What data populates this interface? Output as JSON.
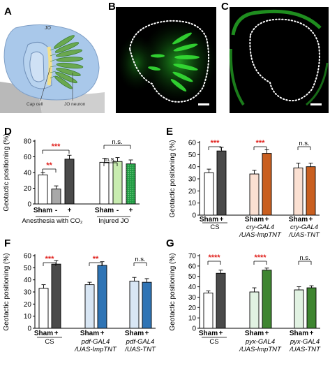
{
  "panel_labels": {
    "A": "A",
    "B": "B",
    "C": "C",
    "D": "D",
    "E": "E",
    "F": "F",
    "G": "G"
  },
  "panel_a": {
    "jo_label": "JO",
    "cap_cell_label": "Cap cell",
    "jo_neuron_label": "JO neuron"
  },
  "colors": {
    "white": "#ffffff",
    "light_gray": "#a8a8a8",
    "dark_gray": "#4a4a4a",
    "light_green": "#c8ecb0",
    "dotted_green": "#23a64a",
    "peach": "#fbe0d2",
    "orange": "#c95f20",
    "light_blue": "#d8e6f4",
    "blue": "#2f74b5",
    "mint": "#e1f2e2",
    "green": "#3e8530",
    "sig_red": "#e0201c",
    "axis": "#000000",
    "fluor_green": "#2bd12b"
  },
  "chart_data": [
    {
      "id": "D",
      "type": "bar",
      "ylabel": "Geotactic positioning (%)",
      "ylim": [
        0,
        80
      ],
      "yticks": [
        "0",
        "20",
        "40",
        "60",
        "80"
      ],
      "tick_labels": [
        "Sham",
        "-",
        "+",
        "Sham",
        "-",
        "+"
      ],
      "group_labels": [
        "Anesthesia with CO₂",
        "Injured JO"
      ],
      "values": [
        37,
        19,
        57,
        53,
        54,
        51
      ],
      "errors": [
        3,
        4,
        5,
        5,
        5,
        5
      ],
      "bar_colors": [
        "white",
        "light_gray",
        "dark_gray",
        "white",
        "light_green",
        "dotted_green"
      ],
      "annotations": [
        {
          "text": "***",
          "red": true
        },
        {
          "text": "**",
          "red": true
        },
        {
          "text": "n.s.",
          "red": false
        },
        {
          "text": "n.s.",
          "red": false
        }
      ]
    },
    {
      "id": "E",
      "type": "bar",
      "ylabel": "Geotactic positioning (%)",
      "ylim": [
        0,
        60
      ],
      "yticks": [
        "0",
        "10",
        "20",
        "30",
        "40",
        "50",
        "60"
      ],
      "tick_labels": [
        "Sham",
        "+",
        "Sham",
        "+",
        "Sham",
        "+"
      ],
      "group_labels": [
        [
          "CS"
        ],
        [
          "cry-GAL4",
          "/UAS-ImpTNT"
        ],
        [
          "cry-GAL4",
          "/UAS-TNT"
        ]
      ],
      "values": [
        35,
        53,
        34,
        51,
        39,
        40
      ],
      "errors": [
        3,
        3,
        3,
        3,
        4,
        3
      ],
      "bar_colors": [
        "white",
        "dark_gray",
        "peach",
        "orange",
        "peach",
        "orange"
      ],
      "annotations": [
        {
          "text": "***",
          "red": true
        },
        {
          "text": "***",
          "red": true
        },
        {
          "text": "n.s.",
          "red": false
        }
      ]
    },
    {
      "id": "F",
      "type": "bar",
      "ylabel": "Geotactic positioning (%)",
      "ylim": [
        0,
        60
      ],
      "yticks": [
        "0",
        "10",
        "20",
        "30",
        "40",
        "50",
        "60"
      ],
      "tick_labels": [
        "Sham",
        "+",
        "Sham",
        "+",
        "Sham",
        "+"
      ],
      "group_labels": [
        [
          "CS"
        ],
        [
          "pdf-GAL4",
          "/UAS-ImpTNT"
        ],
        [
          "pdf-GAL4",
          "/UAS-TNT"
        ]
      ],
      "values": [
        33,
        53,
        36,
        52,
        39,
        38
      ],
      "errors": [
        3,
        3,
        2,
        3,
        3,
        3
      ],
      "bar_colors": [
        "white",
        "dark_gray",
        "light_blue",
        "blue",
        "light_blue",
        "blue"
      ],
      "annotations": [
        {
          "text": "***",
          "red": true
        },
        {
          "text": "**",
          "red": true
        },
        {
          "text": "n.s.",
          "red": false
        }
      ]
    },
    {
      "id": "G",
      "type": "bar",
      "ylabel": "Geotactic positioning (%)",
      "ylim": [
        0,
        70
      ],
      "yticks": [
        "0",
        "10",
        "20",
        "30",
        "40",
        "50",
        "60",
        "70"
      ],
      "tick_labels": [
        "Sham",
        "+",
        "Sham",
        "+",
        "Sham",
        "+"
      ],
      "group_labels": [
        [
          "CS"
        ],
        [
          "pyx-GAL4",
          "/UAS-ImpTNT"
        ],
        [
          "pyx-GAL4",
          "/UAS-TNT"
        ]
      ],
      "values": [
        34,
        53,
        35,
        56,
        37,
        39
      ],
      "errors": [
        2,
        3,
        4,
        2,
        3,
        2
      ],
      "bar_colors": [
        "white",
        "dark_gray",
        "mint",
        "green",
        "mint",
        "green"
      ],
      "annotations": [
        {
          "text": "****",
          "red": true
        },
        {
          "text": "****",
          "red": true
        },
        {
          "text": "n.s.",
          "red": false
        }
      ]
    }
  ]
}
